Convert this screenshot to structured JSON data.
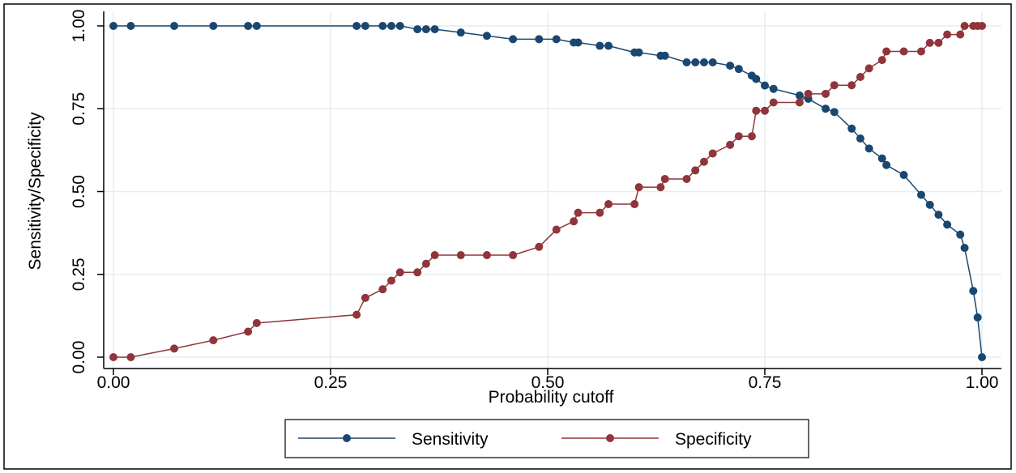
{
  "chart_data": {
    "type": "line",
    "x_label": "Probability cutoff",
    "y_label": "Sensitivity/Specificity",
    "x": [
      0.0,
      0.02,
      0.07,
      0.115,
      0.155,
      0.165,
      0.28,
      0.29,
      0.31,
      0.32,
      0.33,
      0.35,
      0.36,
      0.37,
      0.4,
      0.43,
      0.46,
      0.49,
      0.51,
      0.53,
      0.535,
      0.56,
      0.57,
      0.6,
      0.605,
      0.63,
      0.635,
      0.66,
      0.67,
      0.68,
      0.69,
      0.71,
      0.72,
      0.735,
      0.74,
      0.75,
      0.76,
      0.79,
      0.8,
      0.82,
      0.83,
      0.85,
      0.86,
      0.87,
      0.885,
      0.89,
      0.91,
      0.93,
      0.94,
      0.95,
      0.96,
      0.975,
      0.98,
      0.99,
      0.995,
      1.0
    ],
    "series": [
      {
        "name": "Sensitivity",
        "color": "#1a476f",
        "values": [
          1,
          1,
          1,
          1,
          1,
          1,
          1,
          1,
          1,
          1,
          1,
          0.99,
          0.99,
          0.99,
          0.98,
          0.97,
          0.96,
          0.96,
          0.96,
          0.95,
          0.95,
          0.94,
          0.94,
          0.92,
          0.92,
          0.91,
          0.91,
          0.89,
          0.89,
          0.89,
          0.89,
          0.88,
          0.87,
          0.85,
          0.84,
          0.82,
          0.81,
          0.79,
          0.78,
          0.75,
          0.74,
          0.69,
          0.66,
          0.63,
          0.6,
          0.58,
          0.55,
          0.49,
          0.46,
          0.43,
          0.4,
          0.37,
          0.33,
          0.2,
          0.12,
          0.0
        ]
      },
      {
        "name": "Specificity",
        "color": "#90353b",
        "values": [
          0,
          0,
          0.026,
          0.051,
          0.077,
          0.103,
          0.128,
          0.179,
          0.205,
          0.231,
          0.256,
          0.256,
          0.282,
          0.308,
          0.308,
          0.308,
          0.308,
          0.333,
          0.385,
          0.41,
          0.436,
          0.436,
          0.462,
          0.462,
          0.513,
          0.513,
          0.538,
          0.538,
          0.564,
          0.59,
          0.615,
          0.641,
          0.667,
          0.667,
          0.744,
          0.744,
          0.769,
          0.769,
          0.795,
          0.795,
          0.821,
          0.821,
          0.846,
          0.872,
          0.897,
          0.923,
          0.923,
          0.923,
          0.949,
          0.949,
          0.974,
          0.974,
          1,
          1,
          1,
          1
        ]
      }
    ],
    "xlim": [
      0,
      1
    ],
    "ylim": [
      0,
      1
    ],
    "xticks": [
      {
        "value": 0,
        "label": "0.00"
      },
      0.25,
      {
        "value": 0.5,
        "label": "0.50"
      },
      0.75,
      {
        "value": 1,
        "label": "1.00"
      }
    ],
    "yticks": [
      {
        "value": 0,
        "label": "0.00"
      },
      0.25,
      {
        "value": 0.5,
        "label": "0.50"
      },
      0.75,
      {
        "value": 1,
        "label": "1.00"
      }
    ],
    "grid": true,
    "legend": "bottom"
  }
}
